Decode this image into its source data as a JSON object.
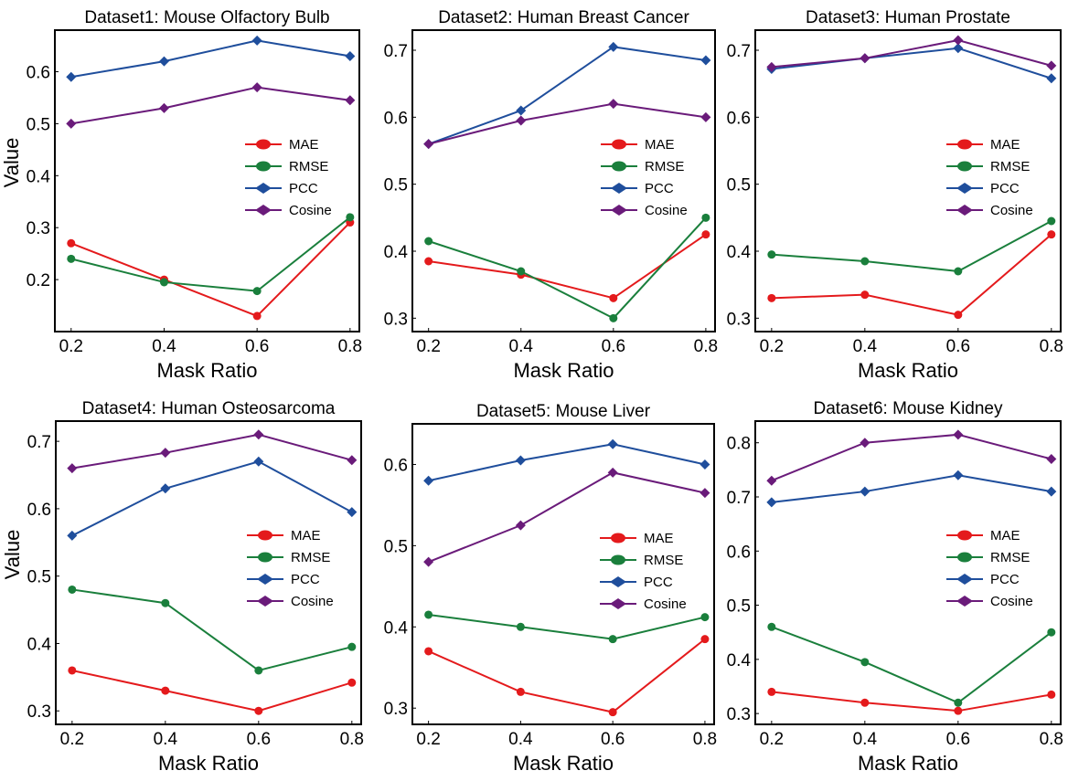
{
  "figure": {
    "xlabel": "Mask Ratio",
    "ylabel": "Value",
    "metric_colors": {
      "MAE": "#e41a1c",
      "RMSE": "#1a7f3c",
      "PCC": "#1f4e9c",
      "Cosine": "#6a1b7a"
    }
  },
  "chart_data": [
    {
      "type": "line",
      "title": "Dataset1: Mouse Olfactory Bulb",
      "xlabel": "Mask Ratio",
      "ylabel": "Value",
      "x": [
        0.2,
        0.4,
        0.6,
        0.8
      ],
      "ylim": [
        0.1,
        0.68
      ],
      "yticks": [
        0.2,
        0.3,
        0.4,
        0.5,
        0.6
      ],
      "ytick_labels": [
        "0.2",
        "0.3",
        "0.4",
        "0.5",
        "0.6"
      ],
      "xticks": [
        0.2,
        0.4,
        0.6,
        0.8
      ],
      "xtick_labels": [
        "0.2",
        "0.4",
        "0.6",
        "0.8"
      ],
      "series": [
        {
          "name": "MAE",
          "marker": "circle",
          "values": [
            0.27,
            0.2,
            0.13,
            0.31
          ]
        },
        {
          "name": "RMSE",
          "marker": "circle",
          "values": [
            0.24,
            0.195,
            0.178,
            0.32
          ]
        },
        {
          "name": "PCC",
          "marker": "diamond",
          "values": [
            0.59,
            0.62,
            0.66,
            0.63
          ]
        },
        {
          "name": "Cosine",
          "marker": "diamond",
          "values": [
            0.5,
            0.53,
            0.57,
            0.545
          ]
        }
      ],
      "legend_loc": "center-right"
    },
    {
      "type": "line",
      "title": "Dataset2: Human Breast Cancer",
      "xlabel": "Mask Ratio",
      "ylabel": "",
      "x": [
        0.2,
        0.4,
        0.6,
        0.8
      ],
      "ylim": [
        0.28,
        0.73
      ],
      "yticks": [
        0.3,
        0.4,
        0.5,
        0.6,
        0.7
      ],
      "ytick_labels": [
        "0.3",
        "0.4",
        "0.5",
        "0.6",
        "0.7"
      ],
      "xticks": [
        0.2,
        0.4,
        0.6,
        0.8
      ],
      "xtick_labels": [
        "0.2",
        "0.4",
        "0.6",
        "0.8"
      ],
      "series": [
        {
          "name": "MAE",
          "marker": "circle",
          "values": [
            0.385,
            0.365,
            0.33,
            0.425
          ]
        },
        {
          "name": "RMSE",
          "marker": "circle",
          "values": [
            0.415,
            0.37,
            0.3,
            0.45
          ]
        },
        {
          "name": "PCC",
          "marker": "diamond",
          "values": [
            0.56,
            0.61,
            0.705,
            0.685
          ]
        },
        {
          "name": "Cosine",
          "marker": "diamond",
          "values": [
            0.56,
            0.595,
            0.62,
            0.6
          ]
        }
      ],
      "legend_loc": "center-right"
    },
    {
      "type": "line",
      "title": "Dataset3: Human Prostate",
      "xlabel": "Mask Ratio",
      "ylabel": "",
      "x": [
        0.2,
        0.4,
        0.6,
        0.8
      ],
      "ylim": [
        0.28,
        0.73
      ],
      "yticks": [
        0.3,
        0.4,
        0.5,
        0.6,
        0.7
      ],
      "ytick_labels": [
        "0.3",
        "0.4",
        "0.5",
        "0.6",
        "0.7"
      ],
      "xticks": [
        0.2,
        0.4,
        0.6,
        0.8
      ],
      "xtick_labels": [
        "0.2",
        "0.4",
        "0.6",
        "0.8"
      ],
      "series": [
        {
          "name": "MAE",
          "marker": "circle",
          "values": [
            0.33,
            0.335,
            0.305,
            0.425
          ]
        },
        {
          "name": "RMSE",
          "marker": "circle",
          "values": [
            0.395,
            0.385,
            0.37,
            0.445
          ]
        },
        {
          "name": "PCC",
          "marker": "diamond",
          "values": [
            0.672,
            0.688,
            0.703,
            0.658
          ]
        },
        {
          "name": "Cosine",
          "marker": "diamond",
          "values": [
            0.675,
            0.688,
            0.715,
            0.677
          ]
        }
      ],
      "legend_loc": "center-right"
    },
    {
      "type": "line",
      "title": "Dataset4: Human Osteosarcoma",
      "xlabel": "Mask Ratio",
      "ylabel": "Value",
      "x": [
        0.2,
        0.4,
        0.6,
        0.8
      ],
      "ylim": [
        0.28,
        0.73
      ],
      "yticks": [
        0.3,
        0.4,
        0.5,
        0.6,
        0.7
      ],
      "ytick_labels": [
        "0.3",
        "0.4",
        "0.5",
        "0.6",
        "0.7"
      ],
      "xticks": [
        0.2,
        0.4,
        0.6,
        0.8
      ],
      "xtick_labels": [
        "0.2",
        "0.4",
        "0.6",
        "0.8"
      ],
      "series": [
        {
          "name": "MAE",
          "marker": "circle",
          "values": [
            0.36,
            0.33,
            0.3,
            0.342
          ]
        },
        {
          "name": "RMSE",
          "marker": "circle",
          "values": [
            0.48,
            0.46,
            0.36,
            0.395
          ]
        },
        {
          "name": "PCC",
          "marker": "diamond",
          "values": [
            0.56,
            0.63,
            0.67,
            0.595
          ]
        },
        {
          "name": "Cosine",
          "marker": "diamond",
          "values": [
            0.66,
            0.683,
            0.71,
            0.672
          ]
        }
      ],
      "legend_loc": "center-right"
    },
    {
      "type": "line",
      "title": "Dataset5: Mouse Liver",
      "xlabel": "Mask Ratio",
      "ylabel": "",
      "x": [
        0.2,
        0.4,
        0.6,
        0.8
      ],
      "ylim": [
        0.28,
        0.65
      ],
      "yticks": [
        0.3,
        0.4,
        0.5,
        0.6
      ],
      "ytick_labels": [
        "0.3",
        "0.4",
        "0.5",
        "0.6"
      ],
      "xticks": [
        0.2,
        0.4,
        0.6,
        0.8
      ],
      "xtick_labels": [
        "0.2",
        "0.4",
        "0.6",
        "0.8"
      ],
      "series": [
        {
          "name": "MAE",
          "marker": "circle",
          "values": [
            0.37,
            0.32,
            0.295,
            0.385
          ]
        },
        {
          "name": "RMSE",
          "marker": "circle",
          "values": [
            0.415,
            0.4,
            0.385,
            0.412
          ]
        },
        {
          "name": "PCC",
          "marker": "diamond",
          "values": [
            0.58,
            0.605,
            0.625,
            0.6
          ]
        },
        {
          "name": "Cosine",
          "marker": "diamond",
          "values": [
            0.48,
            0.525,
            0.59,
            0.565
          ]
        }
      ],
      "legend_loc": "center-right"
    },
    {
      "type": "line",
      "title": "Dataset6: Mouse Kidney",
      "xlabel": "Mask Ratio",
      "ylabel": "",
      "x": [
        0.2,
        0.4,
        0.6,
        0.8
      ],
      "ylim": [
        0.28,
        0.84
      ],
      "yticks": [
        0.3,
        0.4,
        0.5,
        0.6,
        0.7,
        0.8
      ],
      "ytick_labels": [
        "0.3",
        "0.4",
        "0.5",
        "0.6",
        "0.7",
        "0.8"
      ],
      "xticks": [
        0.2,
        0.4,
        0.6,
        0.8
      ],
      "xtick_labels": [
        "0.2",
        "0.4",
        "0.6",
        "0.8"
      ],
      "series": [
        {
          "name": "MAE",
          "marker": "circle",
          "values": [
            0.34,
            0.32,
            0.305,
            0.335
          ]
        },
        {
          "name": "RMSE",
          "marker": "circle",
          "values": [
            0.46,
            0.395,
            0.32,
            0.45
          ]
        },
        {
          "name": "PCC",
          "marker": "diamond",
          "values": [
            0.69,
            0.71,
            0.74,
            0.71
          ]
        },
        {
          "name": "Cosine",
          "marker": "diamond",
          "values": [
            0.73,
            0.8,
            0.815,
            0.77
          ]
        }
      ],
      "legend_loc": "center-right"
    }
  ]
}
